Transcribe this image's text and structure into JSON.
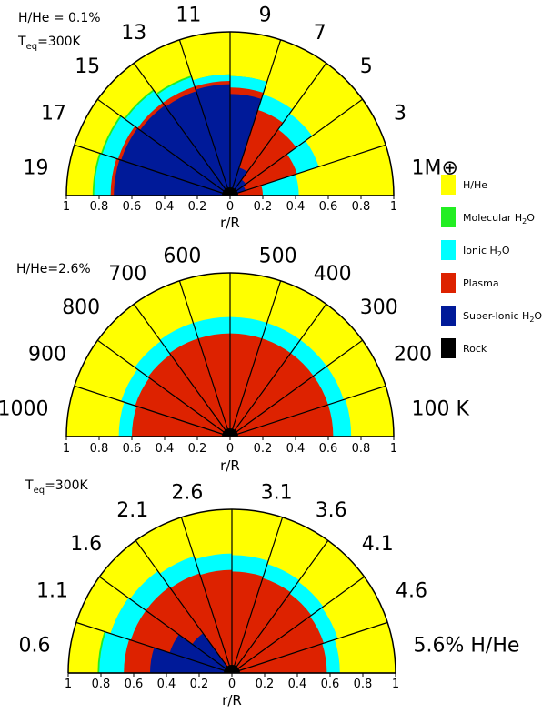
{
  "colors": {
    "H/He": "#ffff00",
    "Molecular H2O": "#22ee22",
    "Ionic H2O": "#00ffff",
    "Plasma": "#dd2200",
    "Super-Ionic H2O": "#001a99",
    "Rock": "#000000"
  },
  "legend": {
    "items": [
      {
        "key": "H/He",
        "label": "H/He",
        "color": "#ffff00"
      },
      {
        "key": "Molecular H2O",
        "label": "Molecular H",
        "sub": "2",
        "tail": "O",
        "color": "#22ee22"
      },
      {
        "key": "Ionic H2O",
        "label": "Ionic H",
        "sub": "2",
        "tail": "O",
        "color": "#00ffff"
      },
      {
        "key": "Plasma",
        "label": "Plasma",
        "color": "#dd2200"
      },
      {
        "key": "Super-Ionic H2O",
        "label": "Super-Ionic H",
        "sub": "2",
        "tail": "O",
        "color": "#001a99"
      },
      {
        "key": "Rock",
        "label": "Rock",
        "color": "#000000"
      }
    ]
  },
  "chart_data": [
    {
      "type": "polar-wedge",
      "annotation": {
        "line1": "H/He = 0.1%",
        "line2_main": "T",
        "line2_sub": "eq",
        "line2_tail": "=300K"
      },
      "xlabel": "r/R",
      "xticks": [
        "1",
        "0.8",
        "0.6",
        "0.4",
        "0.2",
        "0",
        "0.2",
        "0.4",
        "0.6",
        "0.8",
        "1"
      ],
      "wedge_labels": [
        "1M⊕",
        "3",
        "5",
        "7",
        "9",
        "11",
        "13",
        "15",
        "17",
        "19"
      ],
      "unit_suffix": "M⊕",
      "wedges": [
        {
          "label": "1",
          "rock": 0.05,
          "superionic": 0.05,
          "plasma": 0.2,
          "molecular": 0.0,
          "ionic": 0.42
        },
        {
          "label": "3",
          "rock": 0.05,
          "superionic": 0.1,
          "plasma": 0.43,
          "molecular": 0.0,
          "ionic": 0.57
        },
        {
          "label": "5",
          "rock": 0.05,
          "superionic": 0.12,
          "plasma": 0.5,
          "molecular": 0.0,
          "ionic": 0.62
        },
        {
          "label": "7",
          "rock": 0.05,
          "superionic": 0.18,
          "plasma": 0.55,
          "molecular": 0.0,
          "ionic": 0.65
        },
        {
          "label": "9",
          "rock": 0.05,
          "superionic": 0.62,
          "plasma": 0.66,
          "molecular": 0.73,
          "ionic": 0.73
        },
        {
          "label": "11",
          "rock": 0.05,
          "superionic": 0.68,
          "plasma": 0.7,
          "molecular": 0.74,
          "ionic": 0.74
        },
        {
          "label": "13",
          "rock": 0.05,
          "superionic": 0.67,
          "plasma": 0.7,
          "molecular": 0.77,
          "ionic": 0.76
        },
        {
          "label": "15",
          "rock": 0.05,
          "superionic": 0.68,
          "plasma": 0.7,
          "molecular": 0.8,
          "ionic": 0.79
        },
        {
          "label": "17",
          "rock": 0.05,
          "superionic": 0.7,
          "plasma": 0.72,
          "molecular": 0.83,
          "ionic": 0.82
        },
        {
          "label": "19",
          "rock": 0.05,
          "superionic": 0.71,
          "plasma": 0.73,
          "molecular": 0.84,
          "ionic": 0.83
        }
      ]
    },
    {
      "type": "polar-wedge",
      "annotation": {
        "line1": "H/He=2.6%"
      },
      "xlabel": "r/R",
      "xticks": [
        "1",
        "0.8",
        "0.6",
        "0.4",
        "0.2",
        "0",
        "0.2",
        "0.4",
        "0.6",
        "0.8",
        "1"
      ],
      "wedge_labels": [
        "100 K",
        "200",
        "300",
        "400",
        "500",
        "600",
        "700",
        "800",
        "900",
        "1000"
      ],
      "unit_suffix": "K",
      "wedges": [
        {
          "label": "100",
          "rock": 0.05,
          "superionic": 0.0,
          "plasma": 0.63,
          "molecular": 0.0,
          "ionic": 0.74
        },
        {
          "label": "200",
          "rock": 0.05,
          "superionic": 0.0,
          "plasma": 0.63,
          "molecular": 0.0,
          "ionic": 0.73
        },
        {
          "label": "300",
          "rock": 0.05,
          "superionic": 0.0,
          "plasma": 0.63,
          "molecular": 0.0,
          "ionic": 0.73
        },
        {
          "label": "400",
          "rock": 0.05,
          "superionic": 0.0,
          "plasma": 0.63,
          "molecular": 0.0,
          "ionic": 0.73
        },
        {
          "label": "500",
          "rock": 0.05,
          "superionic": 0.0,
          "plasma": 0.63,
          "molecular": 0.0,
          "ionic": 0.73
        },
        {
          "label": "600",
          "rock": 0.05,
          "superionic": 0.0,
          "plasma": 0.63,
          "molecular": 0.0,
          "ionic": 0.73
        },
        {
          "label": "700",
          "rock": 0.05,
          "superionic": 0.0,
          "plasma": 0.63,
          "molecular": 0.0,
          "ionic": 0.73
        },
        {
          "label": "800",
          "rock": 0.05,
          "superionic": 0.0,
          "plasma": 0.62,
          "molecular": 0.0,
          "ionic": 0.72
        },
        {
          "label": "900",
          "rock": 0.05,
          "superionic": 0.0,
          "plasma": 0.61,
          "molecular": 0.0,
          "ionic": 0.7
        },
        {
          "label": "1000",
          "rock": 0.05,
          "superionic": 0.0,
          "plasma": 0.6,
          "molecular": 0.0,
          "ionic": 0.68
        }
      ]
    },
    {
      "type": "polar-wedge",
      "annotation": {
        "line2_main": "T",
        "line2_sub": "eq",
        "line2_tail": "=300K"
      },
      "xlabel": "r/R",
      "xticks": [
        "1",
        "0.8",
        "0.6",
        "0.4",
        "0.2",
        "0",
        "0.2",
        "0.4",
        "0.6",
        "0.8",
        "1"
      ],
      "wedge_labels": [
        "5.6% H/He",
        "4.6",
        "4.1",
        "3.6",
        "3.1",
        "2.6",
        "2.1",
        "1.6",
        "1.1",
        "0.6"
      ],
      "unit_suffix": "% H/He",
      "wedges": [
        {
          "label": "5.6",
          "rock": 0.05,
          "superionic": 0.0,
          "plasma": 0.58,
          "molecular": 0.0,
          "ionic": 0.66
        },
        {
          "label": "4.6",
          "rock": 0.05,
          "superionic": 0.0,
          "plasma": 0.59,
          "molecular": 0.0,
          "ionic": 0.68
        },
        {
          "label": "4.1",
          "rock": 0.05,
          "superionic": 0.0,
          "plasma": 0.6,
          "molecular": 0.0,
          "ionic": 0.69
        },
        {
          "label": "3.6",
          "rock": 0.05,
          "superionic": 0.0,
          "plasma": 0.61,
          "molecular": 0.0,
          "ionic": 0.7
        },
        {
          "label": "3.1",
          "rock": 0.05,
          "superionic": 0.0,
          "plasma": 0.62,
          "molecular": 0.0,
          "ionic": 0.72
        },
        {
          "label": "2.6",
          "rock": 0.05,
          "superionic": 0.0,
          "plasma": 0.63,
          "molecular": 0.0,
          "ionic": 0.73
        },
        {
          "label": "2.1",
          "rock": 0.05,
          "superionic": 0.0,
          "plasma": 0.64,
          "molecular": 0.0,
          "ionic": 0.75
        },
        {
          "label": "1.6",
          "rock": 0.05,
          "superionic": 0.3,
          "plasma": 0.65,
          "molecular": 0.0,
          "ionic": 0.77
        },
        {
          "label": "1.1",
          "rock": 0.05,
          "superionic": 0.4,
          "plasma": 0.65,
          "molecular": 0.78,
          "ionic": 0.78
        },
        {
          "label": "0.6",
          "rock": 0.05,
          "superionic": 0.5,
          "plasma": 0.66,
          "molecular": 0.82,
          "ionic": 0.81
        }
      ]
    }
  ]
}
